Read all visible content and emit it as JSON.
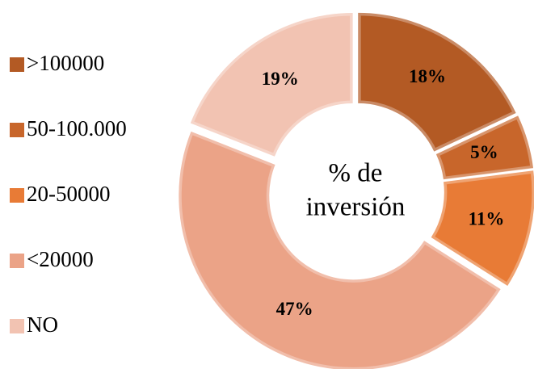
{
  "chart_data": {
    "type": "donut",
    "center_label": [
      "% de",
      "inversión"
    ],
    "categories": [
      ">100000",
      "50-100.000",
      "20-50000",
      "<20000",
      "NO"
    ],
    "values": [
      18,
      5,
      11,
      47,
      19
    ],
    "value_labels": [
      "18%",
      "5%",
      "11%",
      "47%",
      "19%"
    ],
    "colors": [
      "#b35a24",
      "#c8662b",
      "#e87b36",
      "#eba387",
      "#f2c3b2"
    ],
    "legend": "left"
  }
}
